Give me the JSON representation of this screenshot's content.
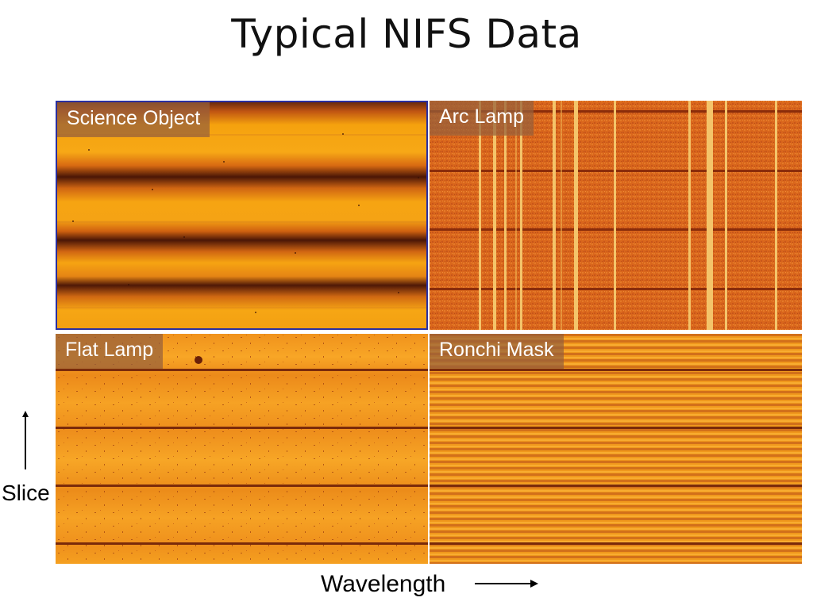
{
  "slide": {
    "title": "Typical NIFS Data"
  },
  "panels": {
    "science": {
      "label": "Science Object"
    },
    "arc": {
      "label": "Arc Lamp"
    },
    "flat": {
      "label": "Flat Lamp"
    },
    "ronchi": {
      "label": "Ronchi Mask"
    }
  },
  "axes": {
    "vertical_label": "Slice",
    "horizontal_label": "Wavelength"
  },
  "colors": {
    "bright_orange": "#f5a623",
    "mid_orange": "#e27a1c",
    "dark_band": "#5a1f08",
    "frame_blue": "#2a2fa0"
  }
}
